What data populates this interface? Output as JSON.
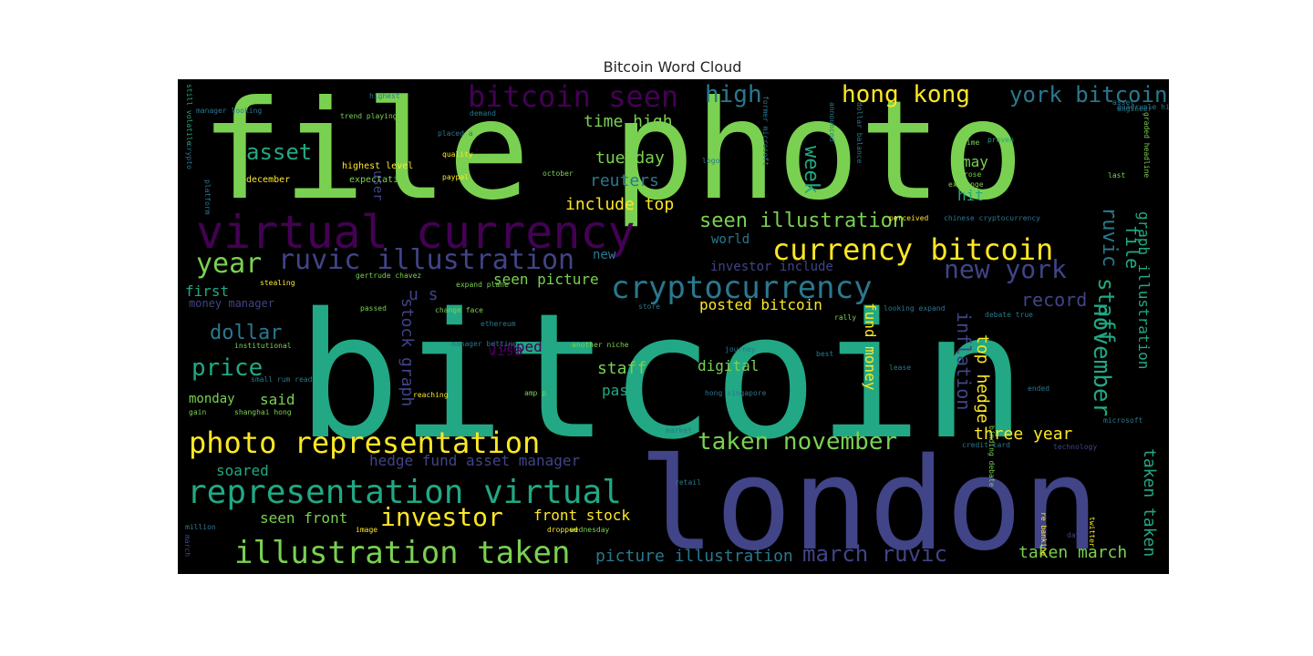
{
  "chart_data": {
    "type": "wordcloud",
    "title": "Bitcoin Word Cloud",
    "background": "#000000",
    "palette": [
      "#7ad151",
      "#22a884",
      "#440154",
      "#414487",
      "#fde725",
      "#2a788e"
    ],
    "words": [
      {
        "text": "file photo",
        "color": "#7ad151"
      },
      {
        "text": "bitcoin",
        "color": "#22a884"
      },
      {
        "text": "london",
        "color": "#414487"
      },
      {
        "text": "virtual currency",
        "color": "#440154"
      },
      {
        "text": "bitcoin seen",
        "color": "#440154"
      },
      {
        "text": "high",
        "color": "#2a788e"
      },
      {
        "text": "hong kong",
        "color": "#fde725"
      },
      {
        "text": "york bitcoin",
        "color": "#2a788e"
      },
      {
        "text": "asset",
        "color": "#22a884"
      },
      {
        "text": "time high",
        "color": "#7ad151"
      },
      {
        "text": "tuesday",
        "color": "#7ad151"
      },
      {
        "text": "reuters",
        "color": "#2a788e"
      },
      {
        "text": "include top",
        "color": "#fde725"
      },
      {
        "text": "week",
        "color": "#22a884"
      },
      {
        "text": "seen illustration",
        "color": "#7ad151"
      },
      {
        "text": "currency bitcoin",
        "color": "#fde725"
      },
      {
        "text": "ruvic",
        "color": "#2a788e"
      },
      {
        "text": "new york",
        "color": "#414487"
      },
      {
        "text": "file",
        "color": "#22a884"
      },
      {
        "text": "staff",
        "color": "#22a884"
      },
      {
        "text": "year",
        "color": "#7ad151"
      },
      {
        "text": "ruvic illustration",
        "color": "#414487"
      },
      {
        "text": "cryptocurrency",
        "color": "#2a788e"
      },
      {
        "text": "investor include",
        "color": "#414487"
      },
      {
        "text": "world",
        "color": "#2a788e"
      },
      {
        "text": "first",
        "color": "#22a884"
      },
      {
        "text": "seen picture",
        "color": "#7ad151"
      },
      {
        "text": "u s",
        "color": "#414487"
      },
      {
        "text": "visa",
        "color": "#440154"
      },
      {
        "text": "posted bitcoin",
        "color": "#fde725"
      },
      {
        "text": "record",
        "color": "#414487"
      },
      {
        "text": "november",
        "color": "#22a884"
      },
      {
        "text": "dollar",
        "color": "#2a788e"
      },
      {
        "text": "price",
        "color": "#22a884"
      },
      {
        "text": "stock graph",
        "color": "#414487"
      },
      {
        "text": "jumped",
        "color": "#440154"
      },
      {
        "text": "staff",
        "color": "#7ad151"
      },
      {
        "text": "digital",
        "color": "#7ad151"
      },
      {
        "text": "fund money",
        "color": "#fde725"
      },
      {
        "text": "inflation",
        "color": "#414487"
      },
      {
        "text": "top hedge",
        "color": "#fde725"
      },
      {
        "text": "graph illustration",
        "color": "#22a884"
      },
      {
        "text": "monday",
        "color": "#7ad151"
      },
      {
        "text": "said",
        "color": "#7ad151"
      },
      {
        "text": "past",
        "color": "#22a884"
      },
      {
        "text": "photo representation",
        "color": "#fde725"
      },
      {
        "text": "taken november",
        "color": "#7ad151"
      },
      {
        "text": "three year",
        "color": "#fde725"
      },
      {
        "text": "taken taken",
        "color": "#22a884"
      },
      {
        "text": "hedge fund asset manager",
        "color": "#414487"
      },
      {
        "text": "soared",
        "color": "#22a884"
      },
      {
        "text": "representation virtual",
        "color": "#22a884"
      },
      {
        "text": "investor",
        "color": "#fde725"
      },
      {
        "text": "seen front",
        "color": "#7ad151"
      },
      {
        "text": "front stock",
        "color": "#fde725"
      },
      {
        "text": "illustration taken",
        "color": "#7ad151"
      },
      {
        "text": "picture illustration",
        "color": "#2a788e"
      },
      {
        "text": "march ruvic",
        "color": "#414487"
      },
      {
        "text": "taken march",
        "color": "#7ad151"
      },
      {
        "text": "money manager",
        "color": "#414487"
      },
      {
        "text": "may",
        "color": "#7ad151"
      },
      {
        "text": "hit",
        "color": "#22a884"
      },
      {
        "text": "new",
        "color": "#2a788e"
      },
      {
        "text": "user",
        "color": "#414487"
      },
      {
        "text": "december",
        "color": "#fde725"
      },
      {
        "text": "highest level",
        "color": "#fde725"
      },
      {
        "text": "expectation",
        "color": "#7ad151"
      },
      {
        "text": "quality",
        "color": "#fde725"
      },
      {
        "text": "paypal",
        "color": "#fde725"
      },
      {
        "text": "october",
        "color": "#7ad151"
      },
      {
        "text": "logo",
        "color": "#2a788e"
      },
      {
        "text": "announced",
        "color": "#2a788e"
      },
      {
        "text": "asset",
        "color": "#2a788e"
      },
      {
        "text": "quadruple high",
        "color": "#2a788e"
      },
      {
        "text": "engineer",
        "color": "#2a788e"
      },
      {
        "text": "time",
        "color": "#7ad151"
      },
      {
        "text": "proven",
        "color": "#22a884"
      },
      {
        "text": "rose",
        "color": "#7ad151"
      },
      {
        "text": "exchange",
        "color": "#7ad151"
      },
      {
        "text": "last",
        "color": "#7ad151"
      },
      {
        "text": "perceived",
        "color": "#fde725"
      },
      {
        "text": "chinese cryptocurrency",
        "color": "#2a788e"
      },
      {
        "text": "manager looking",
        "color": "#2a788e"
      },
      {
        "text": "trend playing",
        "color": "#7ad151"
      },
      {
        "text": "highest",
        "color": "#2a788e"
      },
      {
        "text": "demand",
        "color": "#2a788e"
      },
      {
        "text": "placed a",
        "color": "#2a788e"
      },
      {
        "text": "gertrude chavez",
        "color": "#7ad151"
      },
      {
        "text": "expand plane",
        "color": "#7ad151"
      },
      {
        "text": "stealing",
        "color": "#fde725"
      },
      {
        "text": "passed",
        "color": "#7ad151"
      },
      {
        "text": "change face",
        "color": "#7ad151"
      },
      {
        "text": "store",
        "color": "#2a788e"
      },
      {
        "text": "rally",
        "color": "#7ad151"
      },
      {
        "text": "looking expand",
        "color": "#2a788e"
      },
      {
        "text": "debate true",
        "color": "#2a788e"
      },
      {
        "text": "ethereum",
        "color": "#2a788e"
      },
      {
        "text": "institutional",
        "color": "#7ad151"
      },
      {
        "text": "manager betting",
        "color": "#2a788e"
      },
      {
        "text": "another niche",
        "color": "#7ad151"
      },
      {
        "text": "journey",
        "color": "#2a788e"
      },
      {
        "text": "best",
        "color": "#2a788e"
      },
      {
        "text": "lease",
        "color": "#2a788e"
      },
      {
        "text": "small rum read",
        "color": "#2a788e"
      },
      {
        "text": "amp p",
        "color": "#7ad151"
      },
      {
        "text": "hong singapore",
        "color": "#2a788e"
      },
      {
        "text": "reaching",
        "color": "#fde725"
      },
      {
        "text": "ended",
        "color": "#2a788e"
      },
      {
        "text": "shanghai hong",
        "color": "#7ad151"
      },
      {
        "text": "gain",
        "color": "#7ad151"
      },
      {
        "text": "microsoft",
        "color": "#2a788e"
      },
      {
        "text": "credit card",
        "color": "#2a788e"
      },
      {
        "text": "technology",
        "color": "#414487"
      },
      {
        "text": "market",
        "color": "#2a788e"
      },
      {
        "text": "retail",
        "color": "#2a788e"
      },
      {
        "text": "wednesday",
        "color": "#7ad151"
      },
      {
        "text": "dropped",
        "color": "#fde725"
      },
      {
        "text": "image",
        "color": "#fde725"
      },
      {
        "text": "million",
        "color": "#2a788e"
      },
      {
        "text": "day",
        "color": "#414487"
      },
      {
        "text": "twitter",
        "color": "#fde725"
      },
      {
        "text": "still volatile",
        "color": "#22a884"
      },
      {
        "text": "crypto",
        "color": "#2a788e"
      },
      {
        "text": "platform",
        "color": "#2a788e"
      },
      {
        "text": "graded headline",
        "color": "#7ad151"
      },
      {
        "text": "former microsoft",
        "color": "#2a788e"
      },
      {
        "text": "dollar balance",
        "color": "#2a788e"
      },
      {
        "text": "binding debate",
        "color": "#7ad151"
      },
      {
        "text": "re banking",
        "color": "#fde725"
      },
      {
        "text": "march",
        "color": "#414487"
      }
    ]
  }
}
